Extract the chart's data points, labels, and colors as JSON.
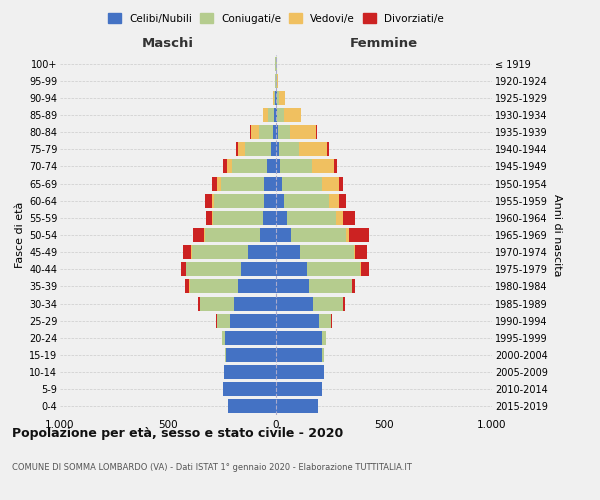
{
  "age_groups": [
    "0-4",
    "5-9",
    "10-14",
    "15-19",
    "20-24",
    "25-29",
    "30-34",
    "35-39",
    "40-44",
    "45-49",
    "50-54",
    "55-59",
    "60-64",
    "65-69",
    "70-74",
    "75-79",
    "80-84",
    "85-89",
    "90-94",
    "95-99",
    "100+"
  ],
  "birth_years": [
    "2015-2019",
    "2010-2014",
    "2005-2009",
    "2000-2004",
    "1995-1999",
    "1990-1994",
    "1985-1989",
    "1980-1984",
    "1975-1979",
    "1970-1974",
    "1965-1969",
    "1960-1964",
    "1955-1959",
    "1950-1954",
    "1945-1949",
    "1940-1944",
    "1935-1939",
    "1930-1934",
    "1925-1929",
    "1920-1924",
    "≤ 1919"
  ],
  "males": {
    "celibi": [
      220,
      245,
      240,
      230,
      235,
      215,
      195,
      175,
      160,
      130,
      75,
      60,
      55,
      55,
      40,
      25,
      15,
      8,
      3,
      2,
      2
    ],
    "coniugati": [
      0,
      0,
      0,
      5,
      15,
      60,
      155,
      225,
      255,
      260,
      255,
      230,
      230,
      200,
      165,
      120,
      65,
      30,
      8,
      2,
      1
    ],
    "vedovi": [
      0,
      0,
      0,
      0,
      0,
      0,
      1,
      1,
      2,
      2,
      2,
      5,
      10,
      18,
      20,
      30,
      35,
      20,
      5,
      0,
      0
    ],
    "divorziati": [
      0,
      0,
      0,
      0,
      2,
      5,
      10,
      20,
      25,
      40,
      50,
      30,
      35,
      25,
      20,
      10,
      5,
      2,
      0,
      0,
      0
    ]
  },
  "females": {
    "nubili": [
      195,
      215,
      220,
      215,
      215,
      200,
      170,
      155,
      145,
      110,
      70,
      50,
      35,
      30,
      18,
      12,
      8,
      5,
      3,
      2,
      2
    ],
    "coniugate": [
      0,
      0,
      0,
      5,
      15,
      55,
      140,
      195,
      245,
      250,
      255,
      230,
      210,
      185,
      150,
      95,
      55,
      30,
      10,
      2,
      1
    ],
    "vedove": [
      0,
      0,
      0,
      0,
      0,
      1,
      2,
      3,
      5,
      8,
      15,
      30,
      45,
      75,
      100,
      130,
      120,
      80,
      30,
      3,
      0
    ],
    "divorziate": [
      0,
      0,
      0,
      0,
      2,
      3,
      8,
      15,
      35,
      55,
      90,
      55,
      35,
      20,
      15,
      8,
      5,
      2,
      0,
      0,
      0
    ]
  },
  "colors": {
    "celibi": "#4472c4",
    "coniugati": "#b5cc8e",
    "vedovi": "#f0c060",
    "divorziati": "#cc2222"
  },
  "title": "Popolazione per età, sesso e stato civile - 2020",
  "subtitle": "COMUNE DI SOMMA LOMBARDO (VA) - Dati ISTAT 1° gennaio 2020 - Elaborazione TUTTITALIA.IT",
  "xlabel_left": "Maschi",
  "xlabel_right": "Femmine",
  "ylabel_left": "Fasce di età",
  "ylabel_right": "Anni di nascita",
  "xlim": 1000,
  "background_color": "#f0f0f0",
  "legend_labels": [
    "Celibi/Nubili",
    "Coniugati/e",
    "Vedovi/e",
    "Divorziati/e"
  ]
}
